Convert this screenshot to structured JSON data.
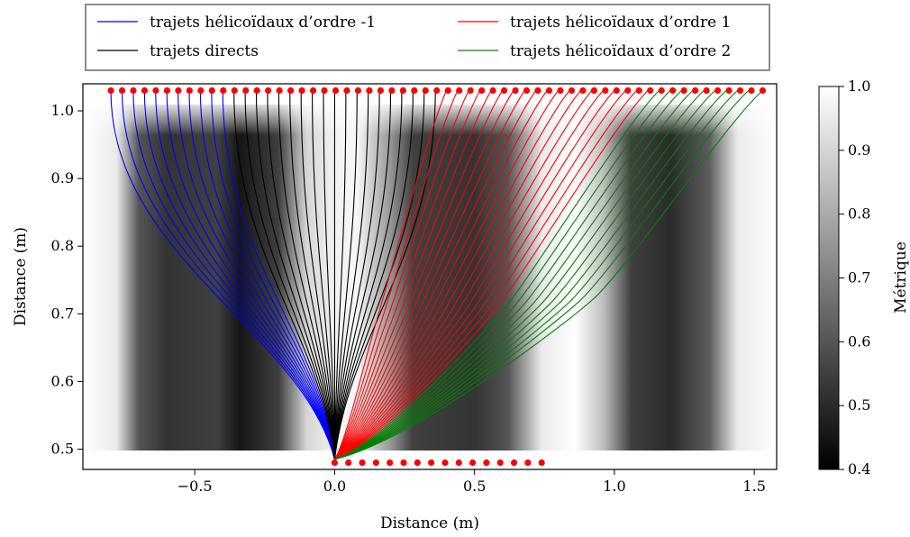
{
  "chart_data": [
    {
      "type": "line",
      "xlabel": "Distance (m)",
      "ylabel": "Distance (m)",
      "xlim": [
        -0.9,
        1.58
      ],
      "ylim": [
        0.47,
        1.04
      ],
      "xticks": [
        -0.5,
        0.0,
        0.5,
        1.0,
        1.5
      ],
      "xtick_labels": [
        "−0.5",
        "0.0",
        "0.5",
        "1.0",
        "1.5"
      ],
      "yticks": [
        0.5,
        0.6,
        0.7,
        0.8,
        0.9,
        1.0
      ],
      "ytick_labels": [
        "0.5",
        "0.6",
        "0.7",
        "0.8",
        "0.9",
        "1.0"
      ],
      "grid": false,
      "legend_position": "top-center, outside",
      "source_point": [
        0.0,
        0.485
      ],
      "series": [
        {
          "name": "trajets hélicoïdaux d’ordre -1",
          "color": "#0000ff",
          "end_x": [
            -0.8,
            -0.76,
            -0.72,
            -0.68,
            -0.64,
            -0.6,
            -0.56,
            -0.52,
            -0.48,
            -0.44,
            -0.4
          ]
        },
        {
          "name": "trajets directs",
          "color": "#000000",
          "end_x": [
            -0.36,
            -0.32,
            -0.28,
            -0.24,
            -0.2,
            -0.16,
            -0.12,
            -0.08,
            -0.04,
            0.0,
            0.04,
            0.08,
            0.12,
            0.16,
            0.2,
            0.24,
            0.28,
            0.32,
            0.36
          ]
        },
        {
          "name": "trajets hélicoïdaux d’ordre 1",
          "color": "#ff0000",
          "end_x": [
            0.4,
            0.44,
            0.48,
            0.52,
            0.56,
            0.6,
            0.64,
            0.68,
            0.72,
            0.76,
            0.8,
            0.84,
            0.88,
            0.92,
            0.96,
            1.0,
            1.04,
            1.08,
            1.12
          ]
        },
        {
          "name": "trajets hélicoïdaux d’ordre 2",
          "color": "#008000",
          "end_x": [
            1.16,
            1.2,
            1.24,
            1.28,
            1.32,
            1.36,
            1.4,
            1.44,
            1.48,
            1.53
          ]
        }
      ],
      "top_points": {
        "y": 1.03,
        "x_start": -0.8,
        "x_end": 1.53,
        "count": 59,
        "color": "#ff0000"
      },
      "bottom_points": {
        "y": 0.48,
        "x_start": 0.0,
        "x_end": 0.74,
        "count": 16,
        "color": "#ff0000"
      }
    },
    {
      "type": "heatmap",
      "colormap": "gray",
      "colorbar_label": "Métrique",
      "clim": [
        0.4,
        1.0
      ],
      "ticks": [
        0.4,
        0.5,
        0.6,
        0.7,
        0.8,
        0.9,
        1.0
      ],
      "tick_labels": [
        "0.4",
        "0.5",
        "0.6",
        "0.7",
        "0.8",
        "0.9",
        "1.0"
      ]
    }
  ]
}
